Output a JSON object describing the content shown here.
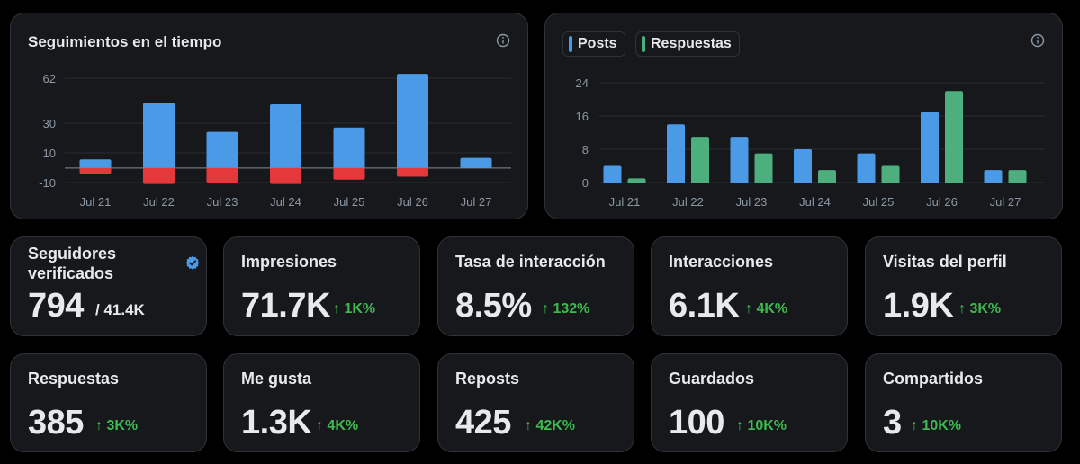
{
  "follows_chart": {
    "title": "Seguimientos en el tiempo",
    "y_ticks": [
      "62",
      "30",
      "10",
      "-10"
    ]
  },
  "engagement_chart": {
    "legend": [
      "Posts",
      "Respuestas"
    ],
    "y_ticks": [
      "24",
      "16",
      "8",
      "0"
    ]
  },
  "colors": {
    "blue": "#4a9ae8",
    "red": "#e5383b",
    "green": "#4caf7d",
    "change_up": "#3fb950",
    "verified": "#4a9ae8"
  },
  "chart_data": [
    {
      "type": "bar",
      "title": "Seguimientos en el tiempo",
      "categories": [
        "Jul 21",
        "Jul 22",
        "Jul 23",
        "Jul 24",
        "Jul 25",
        "Jul 26",
        "Jul 27"
      ],
      "series": [
        {
          "values": [
            6,
            45,
            25,
            44,
            28,
            65,
            7
          ],
          "color": "#4a9ae8"
        },
        {
          "values": [
            -4,
            -11,
            -10,
            -11,
            -8,
            -6,
            0
          ],
          "color": "#e5383b"
        }
      ],
      "ylim": [
        -10,
        62
      ],
      "stacked": true,
      "grid": true
    },
    {
      "type": "bar",
      "title": "",
      "categories": [
        "Jul 21",
        "Jul 22",
        "Jul 23",
        "Jul 24",
        "Jul 25",
        "Jul 26",
        "Jul 27"
      ],
      "series": [
        {
          "name": "Posts",
          "values": [
            4,
            14,
            11,
            8,
            7,
            17,
            3
          ],
          "color": "#4a9ae8"
        },
        {
          "name": "Respuestas",
          "values": [
            1,
            11,
            7,
            3,
            4,
            22,
            3
          ],
          "color": "#4caf7d"
        }
      ],
      "ylim": [
        0,
        24
      ],
      "grid": true,
      "legend": "top-left"
    }
  ],
  "cards": [
    {
      "label": "Seguidores verificados",
      "value": "794",
      "total": "/ 41.4K",
      "change": ""
    },
    {
      "label": "Impresiones",
      "value": "71.7K",
      "change": "↑ 1K%"
    },
    {
      "label": "Tasa de interacción",
      "value": "8.5%",
      "change": "↑ 132%"
    },
    {
      "label": "Interacciones",
      "value": "6.1K",
      "change": "↑ 4K%"
    },
    {
      "label": "Visitas del perfil",
      "value": "1.9K",
      "change": "↑ 3K%"
    },
    {
      "label": "Respuestas",
      "value": "385",
      "change": "↑ 3K%"
    },
    {
      "label": "Me gusta",
      "value": "1.3K",
      "change": "↑ 4K%"
    },
    {
      "label": "Reposts",
      "value": "425",
      "change": "↑ 42K%"
    },
    {
      "label": "Guardados",
      "value": "100",
      "change": "↑ 10K%"
    },
    {
      "label": "Compartidos",
      "value": "3",
      "change": "↑ 10K%"
    }
  ]
}
